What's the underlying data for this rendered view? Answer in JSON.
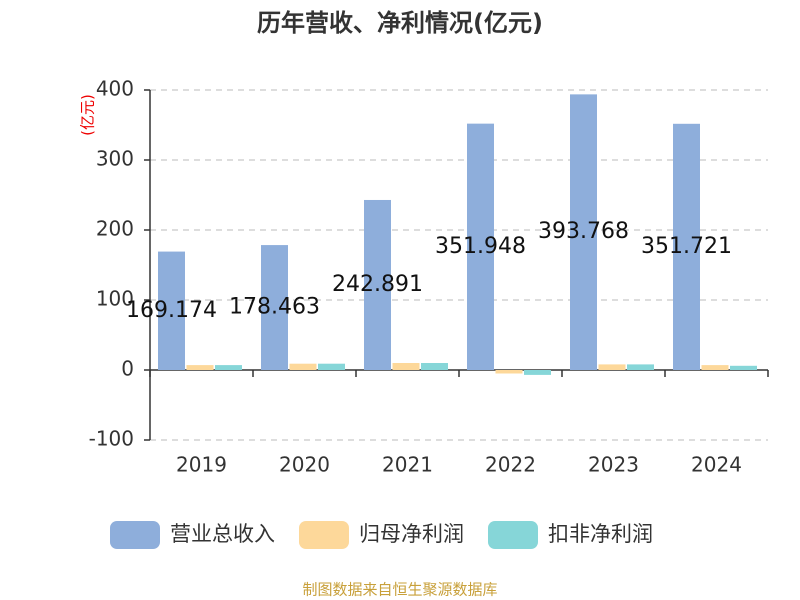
{
  "chart_data": {
    "type": "bar",
    "title": "历年营收、净利情况(亿元)",
    "y_label": "(亿元)",
    "categories": [
      "2019",
      "2020",
      "2021",
      "2022",
      "2023",
      "2024"
    ],
    "series": [
      {
        "name": "营业总收入",
        "color": "#8eaedb",
        "values": [
          169.174,
          178.463,
          242.891,
          351.948,
          393.768,
          351.721
        ]
      },
      {
        "name": "归母净利润",
        "color": "#fdd89a",
        "values": [
          7,
          9,
          10,
          -5,
          8,
          7
        ]
      },
      {
        "name": "扣非净利润",
        "color": "#86d6d8",
        "values": [
          7,
          9,
          10,
          -7,
          8,
          6
        ]
      }
    ],
    "ylim": [
      -100,
      400
    ],
    "yticks": [
      -100,
      0,
      100,
      200,
      300,
      400
    ],
    "grid": true,
    "source": "制图数据来自恒生聚源数据库"
  }
}
